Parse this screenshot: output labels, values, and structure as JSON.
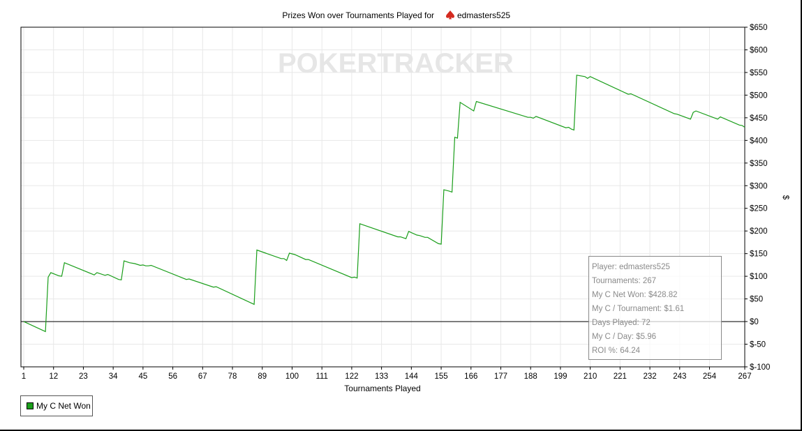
{
  "chart_data": {
    "type": "line",
    "title": "Prizes Won over Tournaments Played for",
    "player": "edmasters525",
    "xlabel": "Tournaments Played",
    "ylabel": "$",
    "xlim": [
      1,
      267
    ],
    "ylim": [
      -100,
      650
    ],
    "x_ticks": [
      "1",
      "12",
      "23",
      "34",
      "45",
      "56",
      "67",
      "78",
      "89",
      "100",
      "111",
      "122",
      "133",
      "144",
      "155",
      "166",
      "177",
      "188",
      "199",
      "210",
      "221",
      "232",
      "243",
      "254",
      "267"
    ],
    "y_ticks": [
      "$650",
      "$600",
      "$550",
      "$500",
      "$450",
      "$400",
      "$350",
      "$300",
      "$250",
      "$200",
      "$150",
      "$100",
      "$50",
      "$0",
      "$-50",
      "$-100"
    ],
    "grid": true,
    "legend_position": "bottom-left",
    "series": [
      {
        "name": "My C Net Won",
        "color": "#1a9e1a",
        "points": [
          [
            1,
            0
          ],
          [
            9,
            -22
          ],
          [
            10,
            98
          ],
          [
            11,
            108
          ],
          [
            14,
            101
          ],
          [
            15,
            100
          ],
          [
            16,
            130
          ],
          [
            27,
            103
          ],
          [
            28,
            108
          ],
          [
            31,
            102
          ],
          [
            32,
            104
          ],
          [
            36,
            93
          ],
          [
            37,
            92
          ],
          [
            38,
            134
          ],
          [
            40,
            130
          ],
          [
            42,
            128
          ],
          [
            44,
            124
          ],
          [
            45,
            125
          ],
          [
            46,
            123
          ],
          [
            47,
            123
          ],
          [
            48,
            124
          ],
          [
            61,
            93
          ],
          [
            62,
            94
          ],
          [
            71,
            76
          ],
          [
            72,
            77
          ],
          [
            86,
            38
          ],
          [
            87,
            158
          ],
          [
            96,
            139
          ],
          [
            97,
            139
          ],
          [
            98,
            135
          ],
          [
            99,
            151
          ],
          [
            101,
            148
          ],
          [
            105,
            137
          ],
          [
            106,
            137
          ],
          [
            122,
            97
          ],
          [
            123,
            98
          ],
          [
            124,
            96
          ],
          [
            125,
            216
          ],
          [
            139,
            187
          ],
          [
            140,
            187
          ],
          [
            142,
            183
          ],
          [
            143,
            199
          ],
          [
            146,
            191
          ],
          [
            147,
            190
          ],
          [
            149,
            186
          ],
          [
            150,
            186
          ],
          [
            154,
            172
          ],
          [
            155,
            171
          ],
          [
            156,
            291
          ],
          [
            158,
            288
          ],
          [
            159,
            286
          ],
          [
            160,
            407
          ],
          [
            161,
            405
          ],
          [
            162,
            484
          ],
          [
            167,
            465
          ],
          [
            168,
            486
          ],
          [
            187,
            451
          ],
          [
            188,
            451
          ],
          [
            189,
            449
          ],
          [
            190,
            453
          ],
          [
            201,
            428
          ],
          [
            202,
            429
          ],
          [
            203,
            425
          ],
          [
            204,
            423
          ],
          [
            205,
            544
          ],
          [
            208,
            541
          ],
          [
            209,
            537
          ],
          [
            210,
            541
          ],
          [
            224,
            502
          ],
          [
            225,
            503
          ],
          [
            241,
            459
          ],
          [
            242,
            458
          ],
          [
            247,
            447
          ],
          [
            248,
            462
          ],
          [
            249,
            465
          ],
          [
            257,
            447
          ],
          [
            258,
            452
          ],
          [
            265,
            434
          ],
          [
            266,
            433
          ],
          [
            267,
            429
          ]
        ]
      }
    ]
  },
  "watermark": "POKERTRACKER",
  "legend": {
    "label": "My C Net Won",
    "color": "#1a9e1a"
  },
  "stats": {
    "player": "Player: edmasters525",
    "tournaments": "Tournaments: 267",
    "net_won": "My C Net Won: $428.82",
    "per_tournament": "My C / Tournament: $1.61",
    "days_played": "Days Played: 72",
    "per_day": "My C / Day: $5.96",
    "roi": "ROI %: 64.24"
  },
  "colors": {
    "line": "#1a9e1a",
    "grid": "#e8e8e8",
    "zero_line": "#000000",
    "spade": "#d42a1f"
  }
}
